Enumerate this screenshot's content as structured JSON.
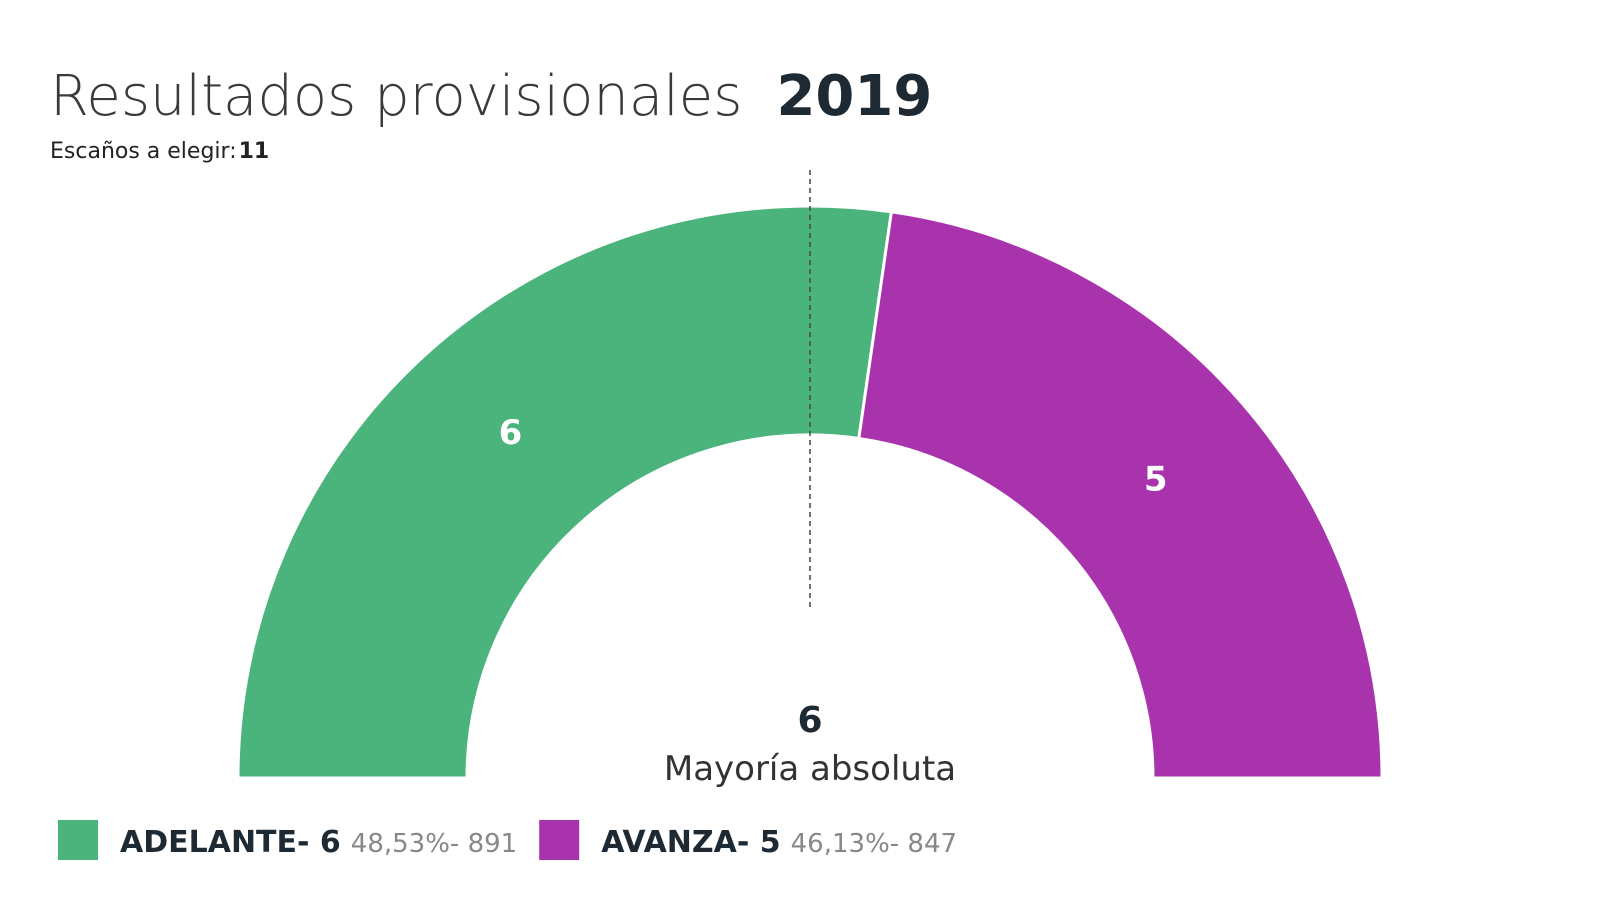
{
  "chart_data": {
    "type": "semicircle",
    "title": "Resultados provisionales",
    "year": "2019",
    "subtitle": "Escaños a elegir:",
    "total_seats": 11,
    "majority": 6,
    "majority_label": "Mayoría absoluta",
    "series": [
      {
        "name": "ADELANTE- 6",
        "color": "#4bb37c",
        "value": 6,
        "detail": "48,53%- 891"
      },
      {
        "name": "AVANZA- 5",
        "color": "#a932ad",
        "value": 5,
        "detail": "46,13%- 847"
      }
    ]
  }
}
